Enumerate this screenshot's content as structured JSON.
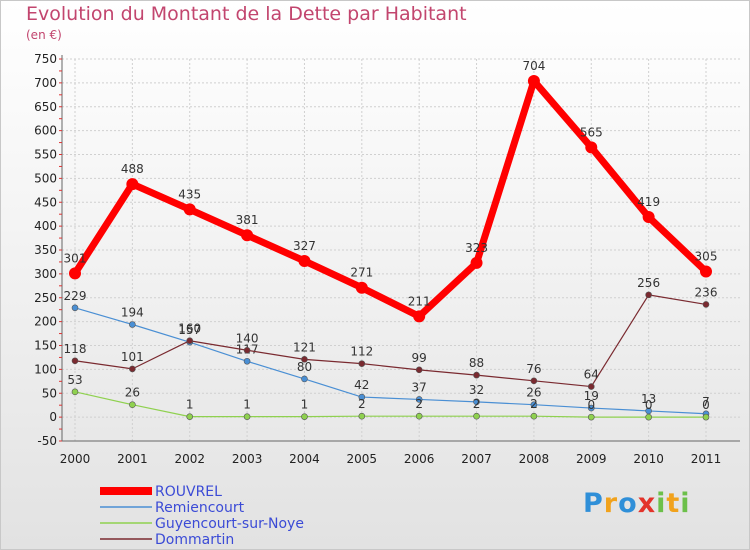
{
  "title": "Evolution du Montant de la Dette par Habitant",
  "unit": "(en €)",
  "logo": {
    "letters": [
      {
        "ch": "P",
        "color": "#2f8fd8"
      },
      {
        "ch": "r",
        "color": "#f1a21c"
      },
      {
        "ch": "o",
        "color": "#2f8fd8"
      },
      {
        "ch": "x",
        "color": "#e3332a"
      },
      {
        "ch": "i",
        "color": "#6cc04a"
      },
      {
        "ch": "t",
        "color": "#f1a21c"
      },
      {
        "ch": "i",
        "color": "#6cc04a"
      }
    ]
  },
  "chart_data": {
    "type": "line",
    "title": "Evolution du Montant de la Dette par Habitant",
    "ylabel": "(en €)",
    "x": [
      "2000",
      "2001",
      "2002",
      "2003",
      "2004",
      "2005",
      "2006",
      "2007",
      "2008",
      "2009",
      "2010",
      "2011"
    ],
    "ylim": [
      -50,
      750
    ],
    "yticks": [
      -50,
      0,
      50,
      100,
      150,
      200,
      250,
      300,
      350,
      400,
      450,
      500,
      550,
      600,
      650,
      700,
      750
    ],
    "grid": true,
    "legend_position": "bottom-left",
    "series": [
      {
        "name": "Remiencourt",
        "color": "#4a8fd4",
        "values": [
          229,
          194,
          157,
          117,
          80,
          42,
          37,
          32,
          26,
          19,
          13,
          7
        ],
        "labels": [
          "229",
          "194",
          "157",
          "117",
          "80",
          "42",
          "37",
          "32",
          "26",
          "19",
          "13",
          "7"
        ]
      },
      {
        "name": "Guyencourt-sur-Noye",
        "color": "#8fd14f",
        "values": [
          53,
          26,
          1,
          1,
          1,
          2,
          2,
          2,
          2,
          0,
          0,
          0
        ],
        "labels": [
          "53",
          "26",
          "1",
          "1",
          "1",
          "2",
          "2",
          "2",
          "2",
          "0",
          "0",
          "0"
        ]
      },
      {
        "name": "Dommartin",
        "color": "#7a2a30",
        "values": [
          118,
          101,
          160,
          140,
          121,
          112,
          99,
          88,
          76,
          64,
          256,
          236
        ],
        "labels": [
          "118",
          "101",
          "160",
          "140",
          "121",
          "112",
          "99",
          "88",
          "76",
          "64",
          "256",
          "236"
        ]
      },
      {
        "name": "ROUVREL",
        "color": "#ff0000",
        "values": [
          301,
          488,
          435,
          381,
          327,
          271,
          211,
          323,
          704,
          565,
          419,
          305
        ],
        "labels": [
          "301",
          "488",
          "435",
          "381",
          "327",
          "271",
          "211",
          "323",
          "704",
          "565",
          "419",
          "305"
        ]
      }
    ],
    "legend_order": [
      "ROUVREL",
      "Remiencourt",
      "Guyencourt-sur-Noye",
      "Dommartin"
    ]
  }
}
